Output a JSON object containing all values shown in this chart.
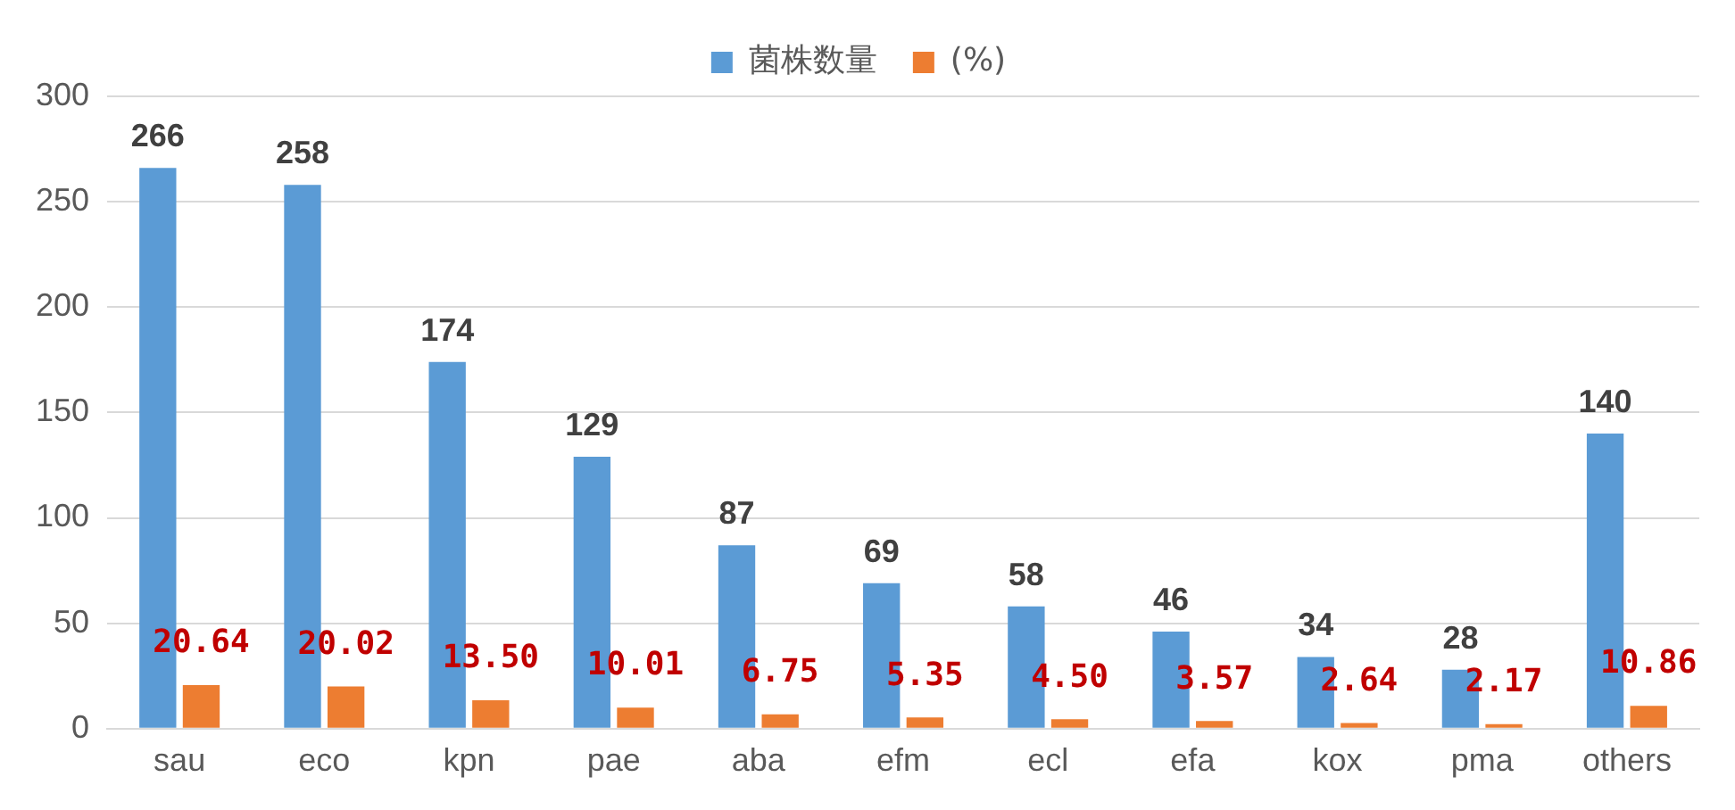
{
  "chart_data": {
    "type": "bar",
    "categories": [
      "sau",
      "eco",
      "kpn",
      "pae",
      "aba",
      "efm",
      "ecl",
      "efa",
      "kox",
      "pma",
      "others"
    ],
    "series": [
      {
        "name": "菌株数量",
        "color": "#5b9bd5",
        "values": [
          266,
          258,
          174,
          129,
          87,
          69,
          58,
          46,
          34,
          28,
          140
        ],
        "value_labels": [
          "266",
          "258",
          "174",
          "129",
          "87",
          "69",
          "58",
          "46",
          "34",
          "28",
          "140"
        ]
      },
      {
        "name": "(%)",
        "color": "#ed7d31",
        "values": [
          20.64,
          20.02,
          13.5,
          10.01,
          6.75,
          5.35,
          4.5,
          3.57,
          2.64,
          2.17,
          10.86
        ],
        "value_labels": [
          "20.64",
          "20.02",
          "13.50",
          "10.01",
          "6.75",
          "5.35",
          "4.50",
          "3.57",
          "2.64",
          "2.17",
          "10.86"
        ]
      }
    ],
    "ylim": [
      0,
      300
    ],
    "yticks": [
      0,
      50,
      100,
      150,
      200,
      250,
      300
    ],
    "grid": "y",
    "legend": "top"
  }
}
